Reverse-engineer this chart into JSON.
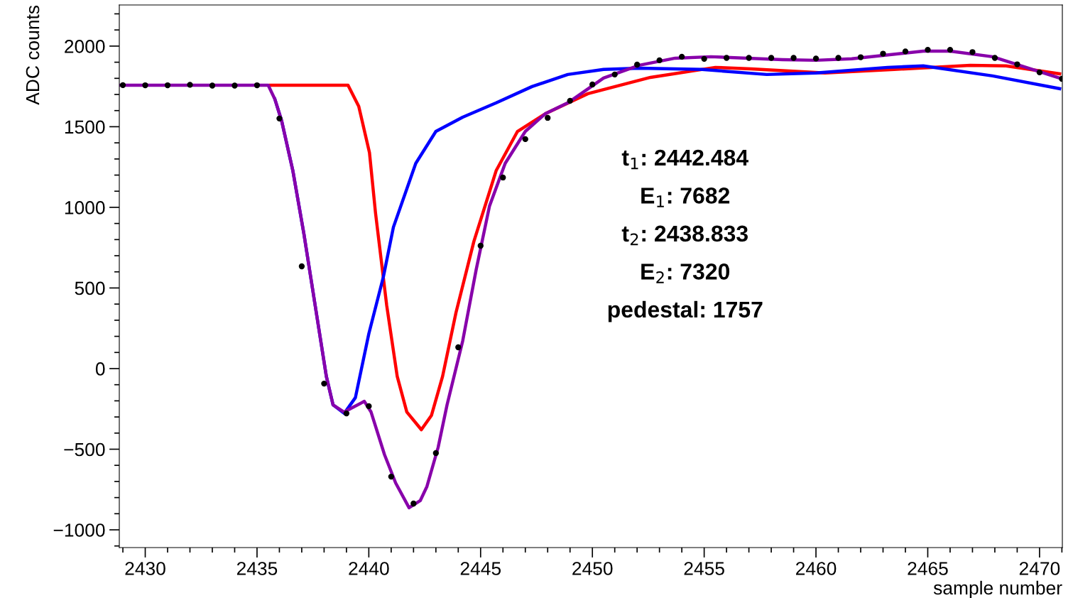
{
  "chart_data": {
    "type": "line",
    "xlabel": "sample number",
    "ylabel": "ADC counts",
    "xlim": [
      2428.84,
      2471.02
    ],
    "xticks": [
      2430,
      2435,
      2440,
      2445,
      2450,
      2455,
      2460,
      2465,
      2470,
      {
        "value": 2429,
        "label": null
      },
      {
        "value": 2431,
        "label": null
      },
      {
        "value": 2432,
        "label": null
      },
      {
        "value": 2433,
        "label": null
      },
      {
        "value": 2434,
        "label": null
      },
      {
        "value": 2436,
        "label": null
      },
      {
        "value": 2437,
        "label": null
      },
      {
        "value": 2438,
        "label": null
      },
      {
        "value": 2439,
        "label": null
      },
      {
        "value": 2441,
        "label": null
      },
      {
        "value": 2442,
        "label": null
      },
      {
        "value": 2443,
        "label": null
      },
      {
        "value": 2444,
        "label": null
      },
      {
        "value": 2446,
        "label": null
      },
      {
        "value": 2447,
        "label": null
      },
      {
        "value": 2448,
        "label": null
      },
      {
        "value": 2449,
        "label": null
      },
      {
        "value": 2451,
        "label": null
      },
      {
        "value": 2452,
        "label": null
      },
      {
        "value": 2453,
        "label": null
      },
      {
        "value": 2454,
        "label": null
      },
      {
        "value": 2456,
        "label": null
      },
      {
        "value": 2457,
        "label": null
      },
      {
        "value": 2458,
        "label": null
      },
      {
        "value": 2459,
        "label": null
      },
      {
        "value": 2461,
        "label": null
      },
      {
        "value": 2462,
        "label": null
      },
      {
        "value": 2463,
        "label": null
      },
      {
        "value": 2464,
        "label": null
      },
      {
        "value": 2466,
        "label": null
      },
      {
        "value": 2467,
        "label": null
      },
      {
        "value": 2468,
        "label": null
      },
      {
        "value": 2469,
        "label": null
      },
      {
        "value": 2471,
        "label": null
      }
    ],
    "ylim": [
      -1110,
      2255
    ],
    "yticks": [
      {
        "value": -1000,
        "label": "−1000"
      },
      {
        "value": -500,
        "label": "−500"
      },
      0,
      500,
      1000,
      1500,
      2000,
      {
        "value": -1100,
        "label": null
      },
      {
        "value": -900,
        "label": null
      },
      {
        "value": -800,
        "label": null
      },
      {
        "value": -700,
        "label": null
      },
      {
        "value": -600,
        "label": null
      },
      {
        "value": -400,
        "label": null
      },
      {
        "value": -300,
        "label": null
      },
      {
        "value": -200,
        "label": null
      },
      {
        "value": -100,
        "label": null
      },
      {
        "value": 100,
        "label": null
      },
      {
        "value": 200,
        "label": null
      },
      {
        "value": 300,
        "label": null
      },
      {
        "value": 400,
        "label": null
      },
      {
        "value": 600,
        "label": null
      },
      {
        "value": 700,
        "label": null
      },
      {
        "value": 800,
        "label": null
      },
      {
        "value": 900,
        "label": null
      },
      {
        "value": 1100,
        "label": null
      },
      {
        "value": 1200,
        "label": null
      },
      {
        "value": 1300,
        "label": null
      },
      {
        "value": 1400,
        "label": null
      },
      {
        "value": 1600,
        "label": null
      },
      {
        "value": 1700,
        "label": null
      },
      {
        "value": 1800,
        "label": null
      },
      {
        "value": 1900,
        "label": null
      },
      {
        "value": 2100,
        "label": null
      },
      {
        "value": 2200,
        "label": null
      }
    ],
    "grid": false,
    "legend": false,
    "annotations": [
      "t$_{1}$: 2442.484",
      "E$_{1}$: 7682",
      "t$_{2}$: 2438.833",
      "E$_{2}$: 7320",
      "pedestal: 1757"
    ],
    "series": [
      {
        "color": "#ff0000",
        "marker": "none",
        "line_style": "solid",
        "x": [
          2435.6,
          2439.07,
          2439.55,
          2440.03,
          2440.3,
          2440.8,
          2441.27,
          2441.7,
          2442.35,
          2442.8,
          2443.3,
          2443.9,
          2444.7,
          2445.7,
          2446.65,
          2447.9,
          2449.8,
          2452.6,
          2455.5,
          2457.1,
          2460.4,
          2463.5,
          2466.9,
          2468.5,
          2470.9
        ],
        "values": [
          1757,
          1757,
          1626,
          1339,
          965,
          392,
          -48,
          -269,
          -379,
          -291,
          -48,
          348,
          789,
          1229,
          1471,
          1581,
          1705,
          1806,
          1868,
          1859,
          1833,
          1855,
          1881,
          1877,
          1828
        ]
      },
      {
        "color": "#0000ff",
        "marker": "none",
        "line_style": "solid",
        "x": [
          2435.8,
          2436.1,
          2436.6,
          2437.1,
          2437.6,
          2438.1,
          2438.4,
          2438.9,
          2439.4,
          2440.0,
          2440.65,
          2441.1,
          2442.1,
          2443.0,
          2444.2,
          2445.7,
          2447.3,
          2448.9,
          2450.5,
          2452.1,
          2454.9,
          2457.8,
          2460.0,
          2463.2,
          2464.8,
          2467.9,
          2470.9
        ],
        "values": [
          1670,
          1537,
          1229,
          833,
          392,
          -48,
          -225,
          -278,
          -180,
          216,
          568,
          877,
          1273,
          1471,
          1559,
          1648,
          1749,
          1824,
          1855,
          1863,
          1855,
          1824,
          1833,
          1868,
          1877,
          1815,
          1736
        ]
      },
      {
        "color": "#8800aa",
        "marker": "none",
        "line_style": "solid",
        "x": [
          2428.84,
          2435.5,
          2435.8,
          2436.1,
          2436.6,
          2437.1,
          2437.6,
          2438.1,
          2438.4,
          2438.9,
          2439.2,
          2439.8,
          2440.1,
          2440.7,
          2441.2,
          2441.8,
          2442.3,
          2442.6,
          2443.1,
          2443.5,
          2444.2,
          2444.8,
          2445.4,
          2446.1,
          2447.0,
          2447.9,
          2448.9,
          2450.5,
          2452.1,
          2453.7,
          2455.3,
          2458.5,
          2460.0,
          2461.6,
          2464.8,
          2466.0,
          2467.9,
          2470.9
        ],
        "values": [
          1757,
          1757,
          1670,
          1537,
          1229,
          833,
          392,
          -48,
          -225,
          -270,
          -247,
          -203,
          -269,
          -533,
          -709,
          -863,
          -819,
          -731,
          -489,
          -225,
          172,
          612,
          1009,
          1273,
          1471,
          1581,
          1648,
          1802,
          1881,
          1925,
          1934,
          1916,
          1912,
          1921,
          1969,
          1969,
          1934,
          1802
        ]
      },
      {
        "type": "scatter",
        "color": "#000000",
        "marker": "circle",
        "x": [
          2429,
          2430,
          2431,
          2432,
          2433,
          2434,
          2435,
          2436,
          2437,
          2438,
          2439,
          2440,
          2441,
          2442,
          2443,
          2444,
          2445,
          2446,
          2447,
          2448,
          2449,
          2450,
          2451,
          2452,
          2453,
          2454,
          2455,
          2456,
          2457,
          2458,
          2459,
          2460,
          2461,
          2462,
          2463,
          2464,
          2465,
          2466,
          2467,
          2468,
          2469,
          2470,
          2471
        ],
        "values": [
          1758,
          1757,
          1757,
          1760,
          1755,
          1755,
          1757,
          1551,
          634,
          -93,
          -278,
          -233,
          -670,
          -837,
          -524,
          132,
          762,
          1185,
          1423,
          1555,
          1661,
          1762,
          1824,
          1885,
          1912,
          1934,
          1921,
          1927,
          1927,
          1927,
          1927,
          1923,
          1927,
          1931,
          1953,
          1967,
          1977,
          1977,
          1963,
          1927,
          1887,
          1837,
          1797
        ]
      }
    ]
  }
}
